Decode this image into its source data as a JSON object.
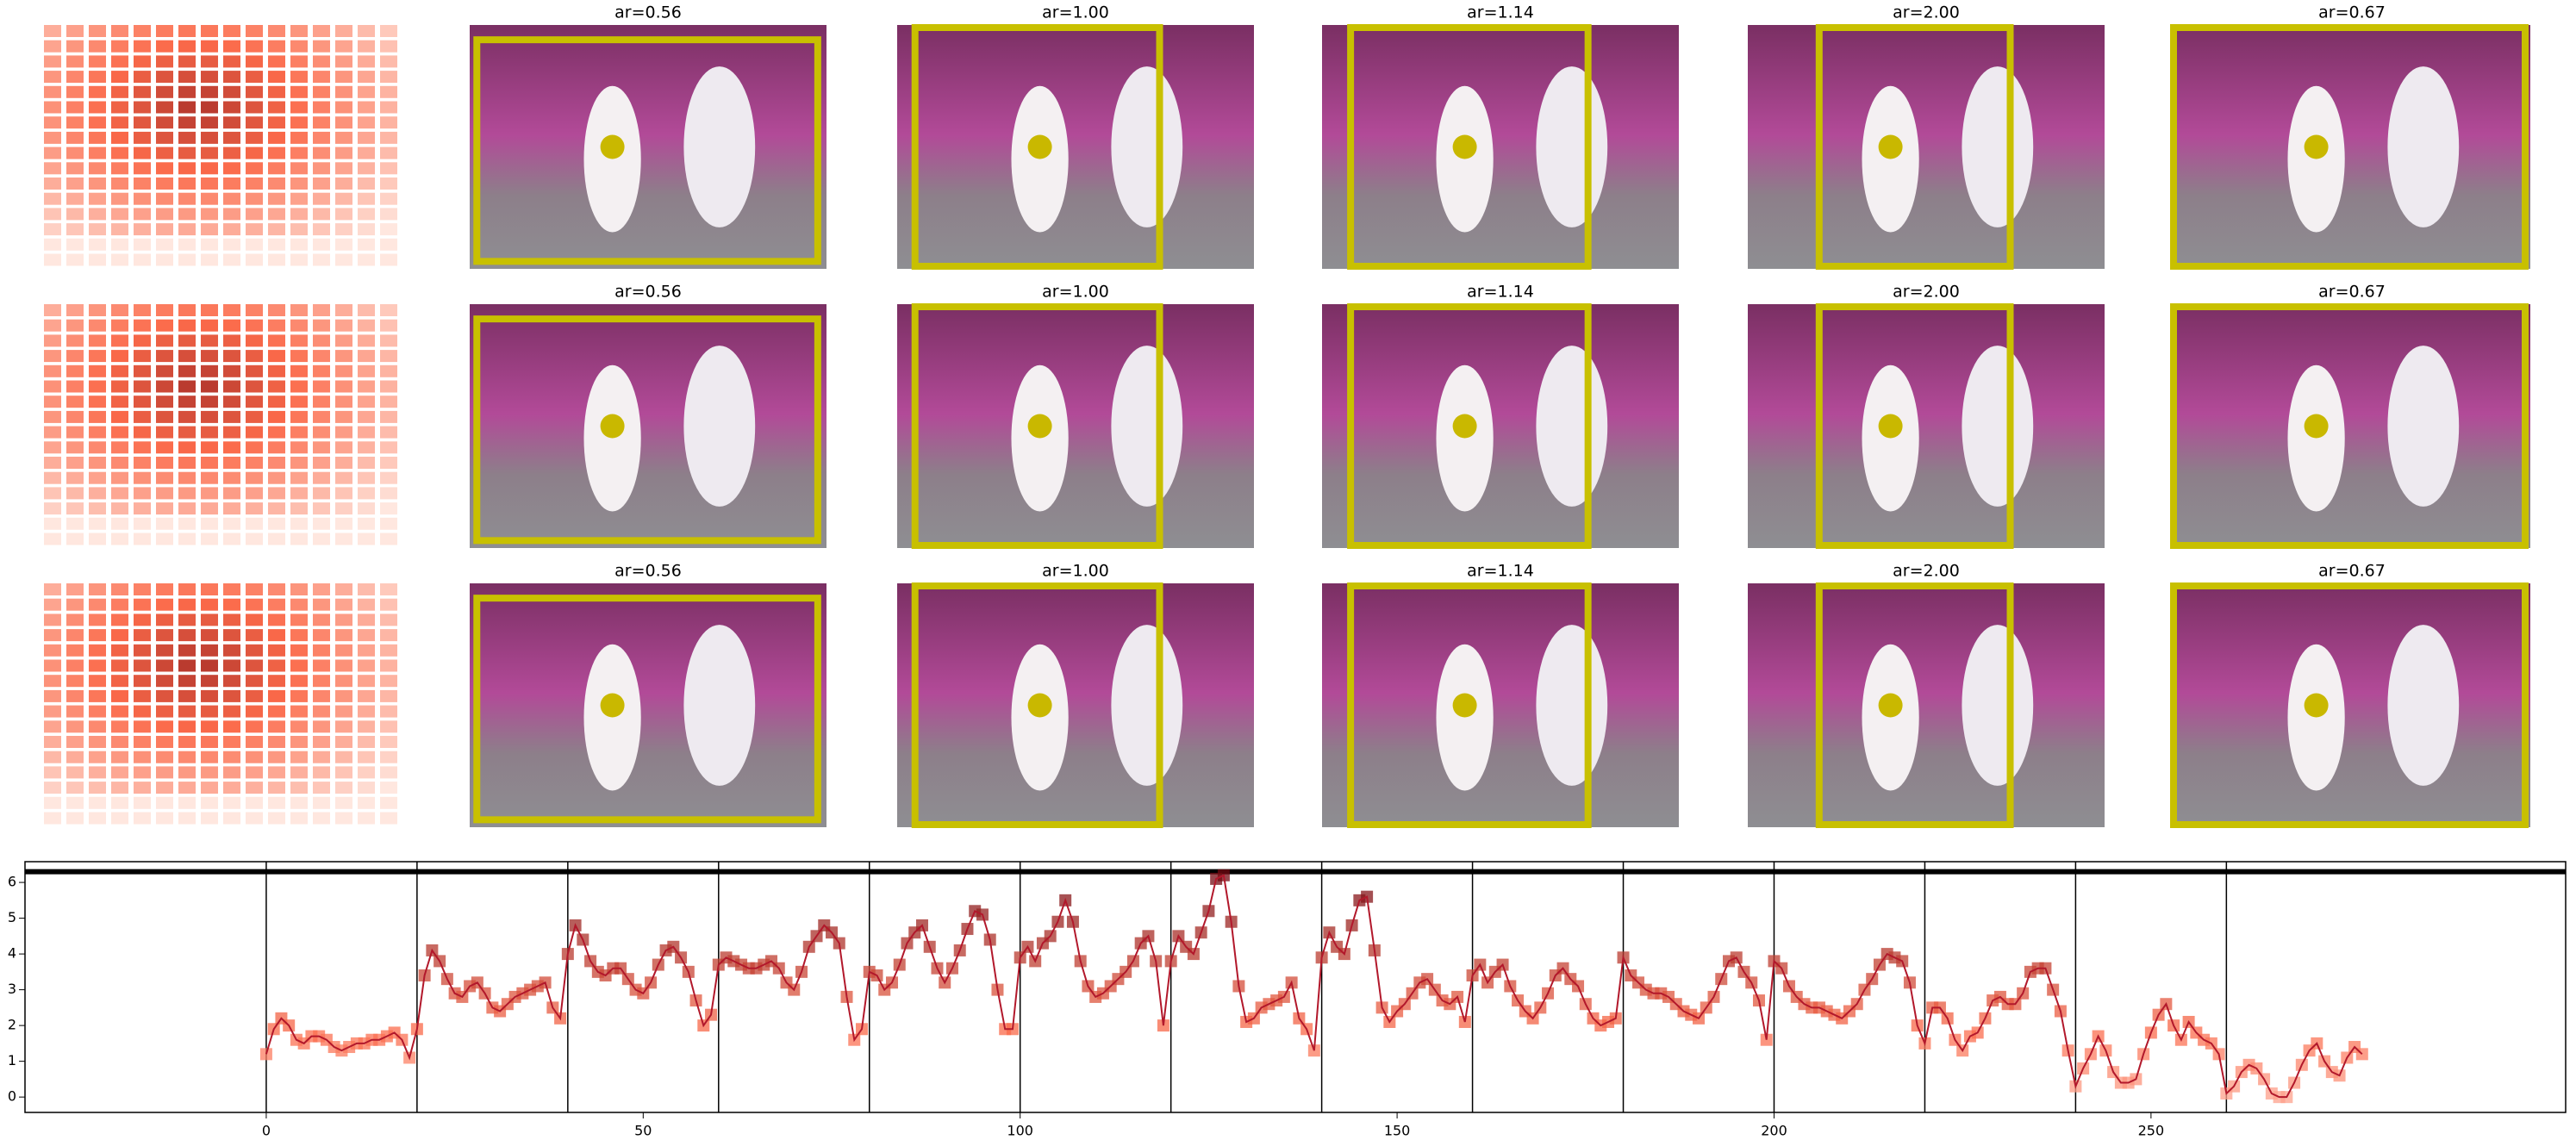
{
  "panels": [
    [
      "ar=0.56",
      "ar=1.00",
      "ar=1.14",
      "ar=2.00",
      "ar=0.67"
    ],
    [
      "ar=0.56",
      "ar=1.00",
      "ar=1.14",
      "ar=2.00",
      "ar=0.67"
    ],
    [
      "ar=0.56",
      "ar=1.00",
      "ar=1.14",
      "ar=2.00",
      "ar=0.67"
    ]
  ],
  "chart_data": {
    "type": "line",
    "x": [
      0,
      1,
      2,
      3,
      4,
      5,
      6,
      7,
      8,
      9,
      10,
      11,
      12,
      13,
      14,
      15,
      16,
      17,
      18,
      19,
      20,
      21,
      22,
      23,
      24,
      25,
      26,
      27,
      28,
      29,
      30,
      31,
      32,
      33,
      34,
      35,
      36,
      37,
      38,
      39,
      40,
      41,
      42,
      43,
      44,
      45,
      46,
      47,
      48,
      49,
      50,
      51,
      52,
      53,
      54,
      55,
      56,
      57,
      58,
      59,
      60,
      61,
      62,
      63,
      64,
      65,
      66,
      67,
      68,
      69,
      70,
      71,
      72,
      73,
      74,
      75,
      76,
      77,
      78,
      79,
      80,
      81,
      82,
      83,
      84,
      85,
      86,
      87,
      88,
      89,
      90,
      91,
      92,
      93,
      94,
      95,
      96,
      97,
      98,
      99,
      100,
      101,
      102,
      103,
      104,
      105,
      106,
      107,
      108,
      109,
      110,
      111,
      112,
      113,
      114,
      115,
      116,
      117,
      118,
      119,
      120,
      121,
      122,
      123,
      124,
      125,
      126,
      127,
      128,
      129,
      130,
      131,
      132,
      133,
      134,
      135,
      136,
      137,
      138,
      139,
      140,
      141,
      142,
      143,
      144,
      145,
      146,
      147,
      148,
      149,
      150,
      151,
      152,
      153,
      154,
      155,
      156,
      157,
      158,
      159,
      160,
      161,
      162,
      163,
      164,
      165,
      166,
      167,
      168,
      169,
      170,
      171,
      172,
      173,
      174,
      175,
      176,
      177,
      178,
      179,
      180,
      181,
      182,
      183,
      184,
      185,
      186,
      187,
      188,
      189,
      190,
      191,
      192,
      193,
      194,
      195,
      196,
      197,
      198,
      199,
      200,
      201,
      202,
      203,
      204,
      205,
      206,
      207,
      208,
      209,
      210,
      211,
      212,
      213,
      214,
      215,
      216,
      217,
      218,
      219,
      220,
      221,
      222,
      223,
      224,
      225,
      226,
      227,
      228,
      229,
      230,
      231,
      232,
      233,
      234,
      235,
      236,
      237,
      238,
      239,
      240,
      241,
      242,
      243,
      244,
      245,
      246,
      247,
      248,
      249,
      250,
      251,
      252,
      253,
      254,
      255,
      256,
      257,
      258,
      259,
      260,
      261,
      262,
      263,
      264,
      265,
      266,
      267,
      268,
      269,
      270,
      271,
      272,
      273,
      274,
      275,
      276,
      277,
      278
    ],
    "values": [
      1.2,
      1.9,
      2.2,
      2.0,
      1.6,
      1.5,
      1.7,
      1.7,
      1.6,
      1.4,
      1.3,
      1.4,
      1.5,
      1.5,
      1.6,
      1.6,
      1.7,
      1.8,
      1.6,
      1.1,
      1.9,
      3.4,
      4.1,
      3.8,
      3.3,
      2.9,
      2.8,
      3.1,
      3.2,
      2.9,
      2.5,
      2.4,
      2.6,
      2.8,
      2.9,
      3.0,
      3.1,
      3.2,
      2.5,
      2.2,
      4.0,
      4.8,
      4.4,
      3.8,
      3.5,
      3.4,
      3.6,
      3.6,
      3.3,
      3.0,
      2.9,
      3.2,
      3.7,
      4.1,
      4.2,
      3.9,
      3.5,
      2.7,
      2.0,
      2.3,
      3.7,
      3.9,
      3.8,
      3.7,
      3.6,
      3.6,
      3.7,
      3.8,
      3.6,
      3.2,
      3.0,
      3.5,
      4.2,
      4.5,
      4.8,
      4.6,
      4.3,
      2.8,
      1.6,
      1.9,
      3.5,
      3.4,
      3.0,
      3.2,
      3.7,
      4.3,
      4.6,
      4.8,
      4.2,
      3.6,
      3.2,
      3.6,
      4.1,
      4.7,
      5.2,
      5.1,
      4.4,
      3.0,
      1.9,
      1.9,
      3.9,
      4.2,
      3.8,
      4.3,
      4.5,
      4.9,
      5.5,
      4.9,
      3.8,
      3.1,
      2.8,
      2.9,
      3.1,
      3.3,
      3.5,
      3.8,
      4.3,
      4.5,
      3.8,
      2.0,
      3.8,
      4.5,
      4.2,
      4.0,
      4.6,
      5.2,
      6.1,
      6.2,
      4.9,
      3.1,
      2.1,
      2.2,
      2.5,
      2.6,
      2.7,
      2.8,
      3.2,
      2.2,
      1.9,
      1.3,
      3.9,
      4.6,
      4.2,
      4.0,
      4.8,
      5.5,
      5.6,
      4.1,
      2.5,
      2.1,
      2.4,
      2.6,
      2.9,
      3.2,
      3.3,
      3.0,
      2.7,
      2.6,
      2.8,
      2.1,
      3.4,
      3.7,
      3.2,
      3.5,
      3.7,
      3.1,
      2.7,
      2.4,
      2.2,
      2.5,
      2.9,
      3.4,
      3.6,
      3.3,
      3.1,
      2.6,
      2.2,
      2.0,
      2.1,
      2.2,
      3.9,
      3.4,
      3.2,
      3.0,
      2.9,
      2.9,
      2.8,
      2.6,
      2.4,
      2.3,
      2.2,
      2.5,
      2.8,
      3.3,
      3.8,
      3.9,
      3.5,
      3.2,
      2.7,
      1.6,
      3.8,
      3.6,
      3.1,
      2.8,
      2.6,
      2.5,
      2.5,
      2.4,
      2.3,
      2.2,
      2.4,
      2.6,
      3.0,
      3.3,
      3.7,
      4.0,
      3.9,
      3.8,
      3.2,
      2.0,
      1.5,
      2.5,
      2.5,
      2.2,
      1.6,
      1.3,
      1.7,
      1.8,
      2.2,
      2.7,
      2.8,
      2.6,
      2.6,
      2.9,
      3.5,
      3.6,
      3.6,
      3.0,
      2.4,
      1.3,
      0.3,
      0.8,
      1.2,
      1.7,
      1.3,
      0.7,
      0.4,
      0.4,
      0.5,
      1.2,
      1.8,
      2.3,
      2.6,
      2.0,
      1.6,
      2.1,
      1.8,
      1.6,
      1.5,
      1.2,
      0.1,
      0.3,
      0.7,
      0.9,
      0.8,
      0.5,
      0.1,
      0.0,
      0.0,
      0.4,
      0.9,
      1.3,
      1.5,
      1.0,
      0.7,
      0.6,
      1.1,
      1.4,
      1.2
    ],
    "xlim": [
      -32,
      305
    ],
    "ylim": [
      -0.43,
      6.58
    ],
    "xticks": [
      0,
      50,
      100,
      150,
      200,
      250
    ],
    "yticks": [
      0,
      1,
      2,
      3,
      4,
      5,
      6
    ],
    "vlines": [
      0,
      20,
      40,
      60,
      80,
      100,
      120,
      140,
      160,
      180,
      200,
      220,
      240,
      260
    ],
    "hline": 6.3,
    "color": "#b2182b"
  }
}
